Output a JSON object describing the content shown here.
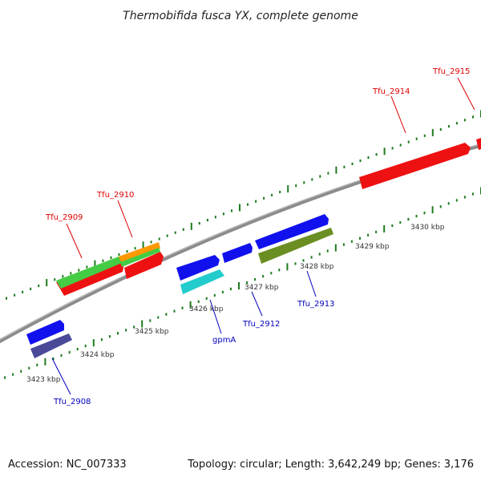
{
  "title": "Thermobifida fusca YX, complete genome",
  "footer": {
    "accession_label": "Accession:",
    "accession": "NC_007333",
    "topology_label": "Topology:",
    "topology": "circular",
    "length_label": "Length:",
    "length": "3,642,249 bp",
    "genes_label": "Genes:",
    "genes": "3,176"
  },
  "colors": {
    "ruler": "#1f7a1f",
    "backbone": "#8c8c8c",
    "forward_label": "#dd0000",
    "reverse_label": "#0000bb"
  },
  "kbp_labels": [
    "3423 kbp",
    "3424 kbp",
    "3425 kbp",
    "3426 kbp",
    "3427 kbp",
    "3428 kbp",
    "3429 kbp",
    "3430 kbp"
  ],
  "forward_genes": [
    {
      "name": "Tfu_2909"
    },
    {
      "name": "Tfu_2910"
    },
    {
      "name": "Tfu_2914"
    },
    {
      "name": "Tfu_2915"
    }
  ],
  "reverse_genes": [
    {
      "name": "Tfu_2908"
    },
    {
      "name": "gpmA"
    },
    {
      "name": "Tfu_2912"
    },
    {
      "name": "Tfu_2913"
    }
  ],
  "feature_colors": {
    "red": "#ee1111",
    "green": "#44cc44",
    "orange": "#ff9900",
    "blue": "#1111ee",
    "navy": "#4a4a99",
    "cyan": "#22cccc",
    "olive": "#6b8e23"
  }
}
